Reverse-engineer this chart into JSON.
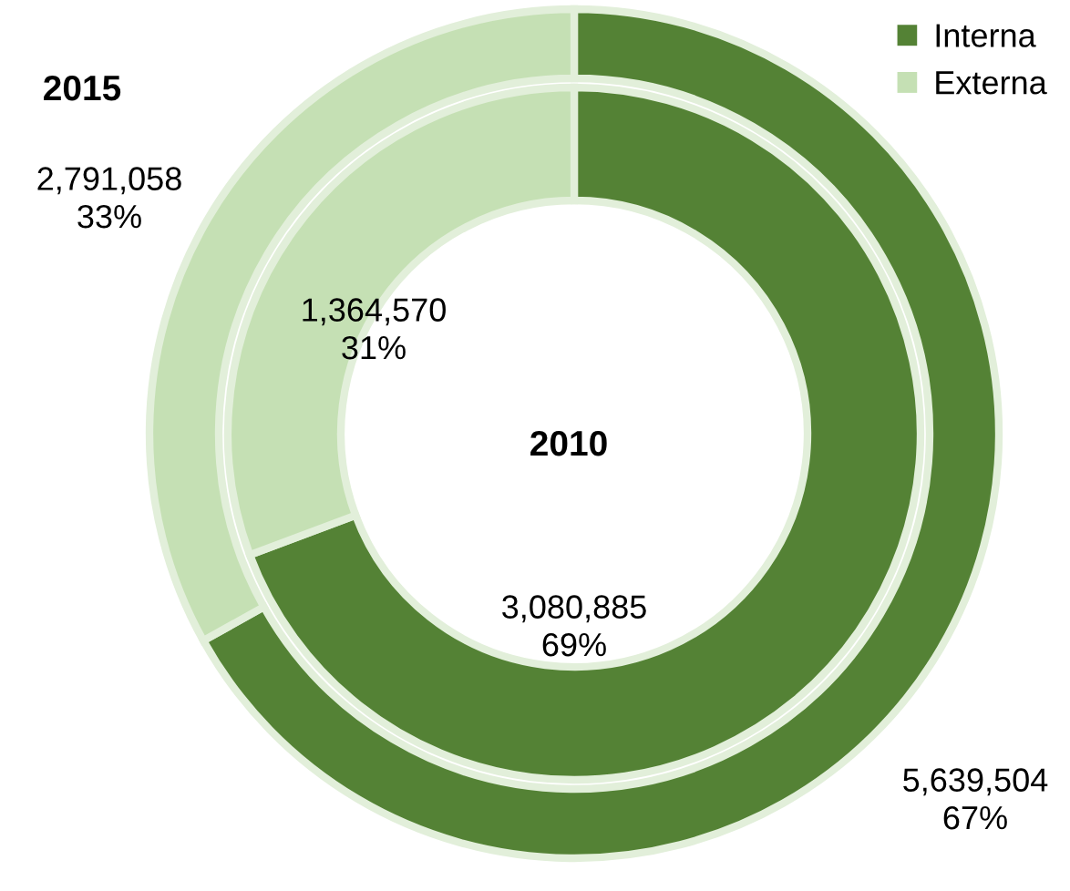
{
  "chart_data": {
    "type": "donut",
    "categories": [
      "Interna",
      "Externa"
    ],
    "colors": [
      "#548235",
      "#c5e0b4"
    ],
    "series": [
      {
        "name": "2015",
        "values": [
          5639504,
          2791058
        ],
        "value_labels": [
          "5,639,504\n67%",
          "2,791,058\n33%"
        ]
      },
      {
        "name": "2010",
        "values": [
          3080885,
          1364570
        ],
        "value_labels": [
          "3,080,885\n69%",
          "1,364,570\n31%"
        ]
      }
    ],
    "legend": "top right"
  }
}
